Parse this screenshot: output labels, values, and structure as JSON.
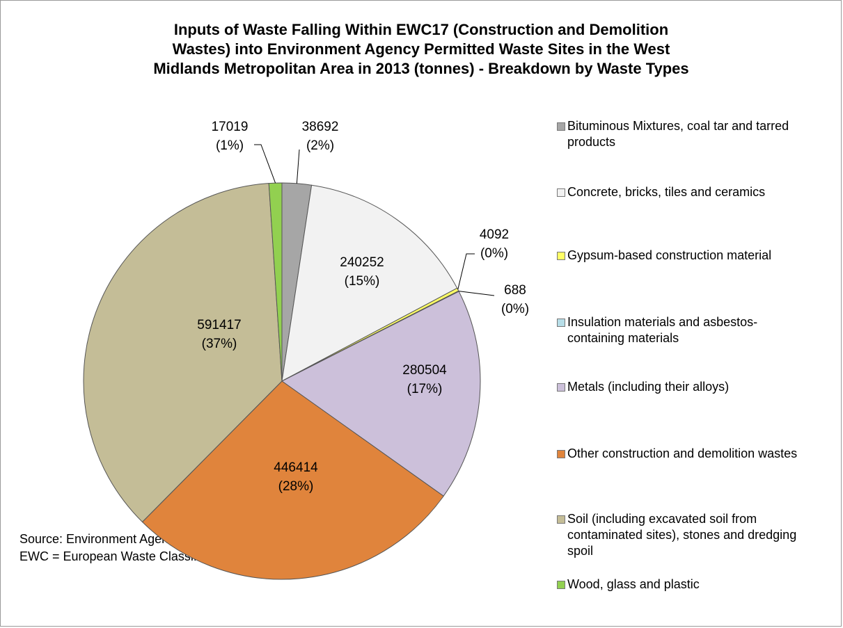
{
  "chart_data": {
    "type": "pie",
    "title": [
      "Inputs of Waste Falling Within EWC17 (Construction and Demolition",
      "Wastes) into Environment Agency Permitted Waste Sites in the West",
      "Midlands Metropolitan Area in 2013 (tonnes) - Breakdown by Waste Types"
    ],
    "categories": [
      "Bituminous Mixtures, coal tar and tarred products",
      "Concrete, bricks, tiles and ceramics",
      "Gypsum-based construction material",
      "Insulation materials and asbestos-containing materials",
      "Metals (including their alloys)",
      "Other construction and demolition wastes",
      "Soil (including excavated soil from contaminated sites), stones and dredging spoil",
      "Wood, glass and plastic"
    ],
    "values": [
      38692,
      240252,
      4092,
      688,
      280504,
      446414,
      591417,
      17019
    ],
    "percent_labels": [
      "(2%)",
      "(15%)",
      "(0%)",
      "(0%)",
      "(17%)",
      "(28%)",
      "(37%)",
      "(1%)"
    ],
    "colors": [
      "#a6a6a6",
      "#f2f2f2",
      "#ffff66",
      "#b7dee8",
      "#ccc0da",
      "#e0843c",
      "#c4bd97",
      "#92d050"
    ],
    "legend": "right",
    "notes": [
      "Source: Environment Agency Waste Data Interrogator 2013",
      "EWC = European Waste Classification"
    ]
  }
}
